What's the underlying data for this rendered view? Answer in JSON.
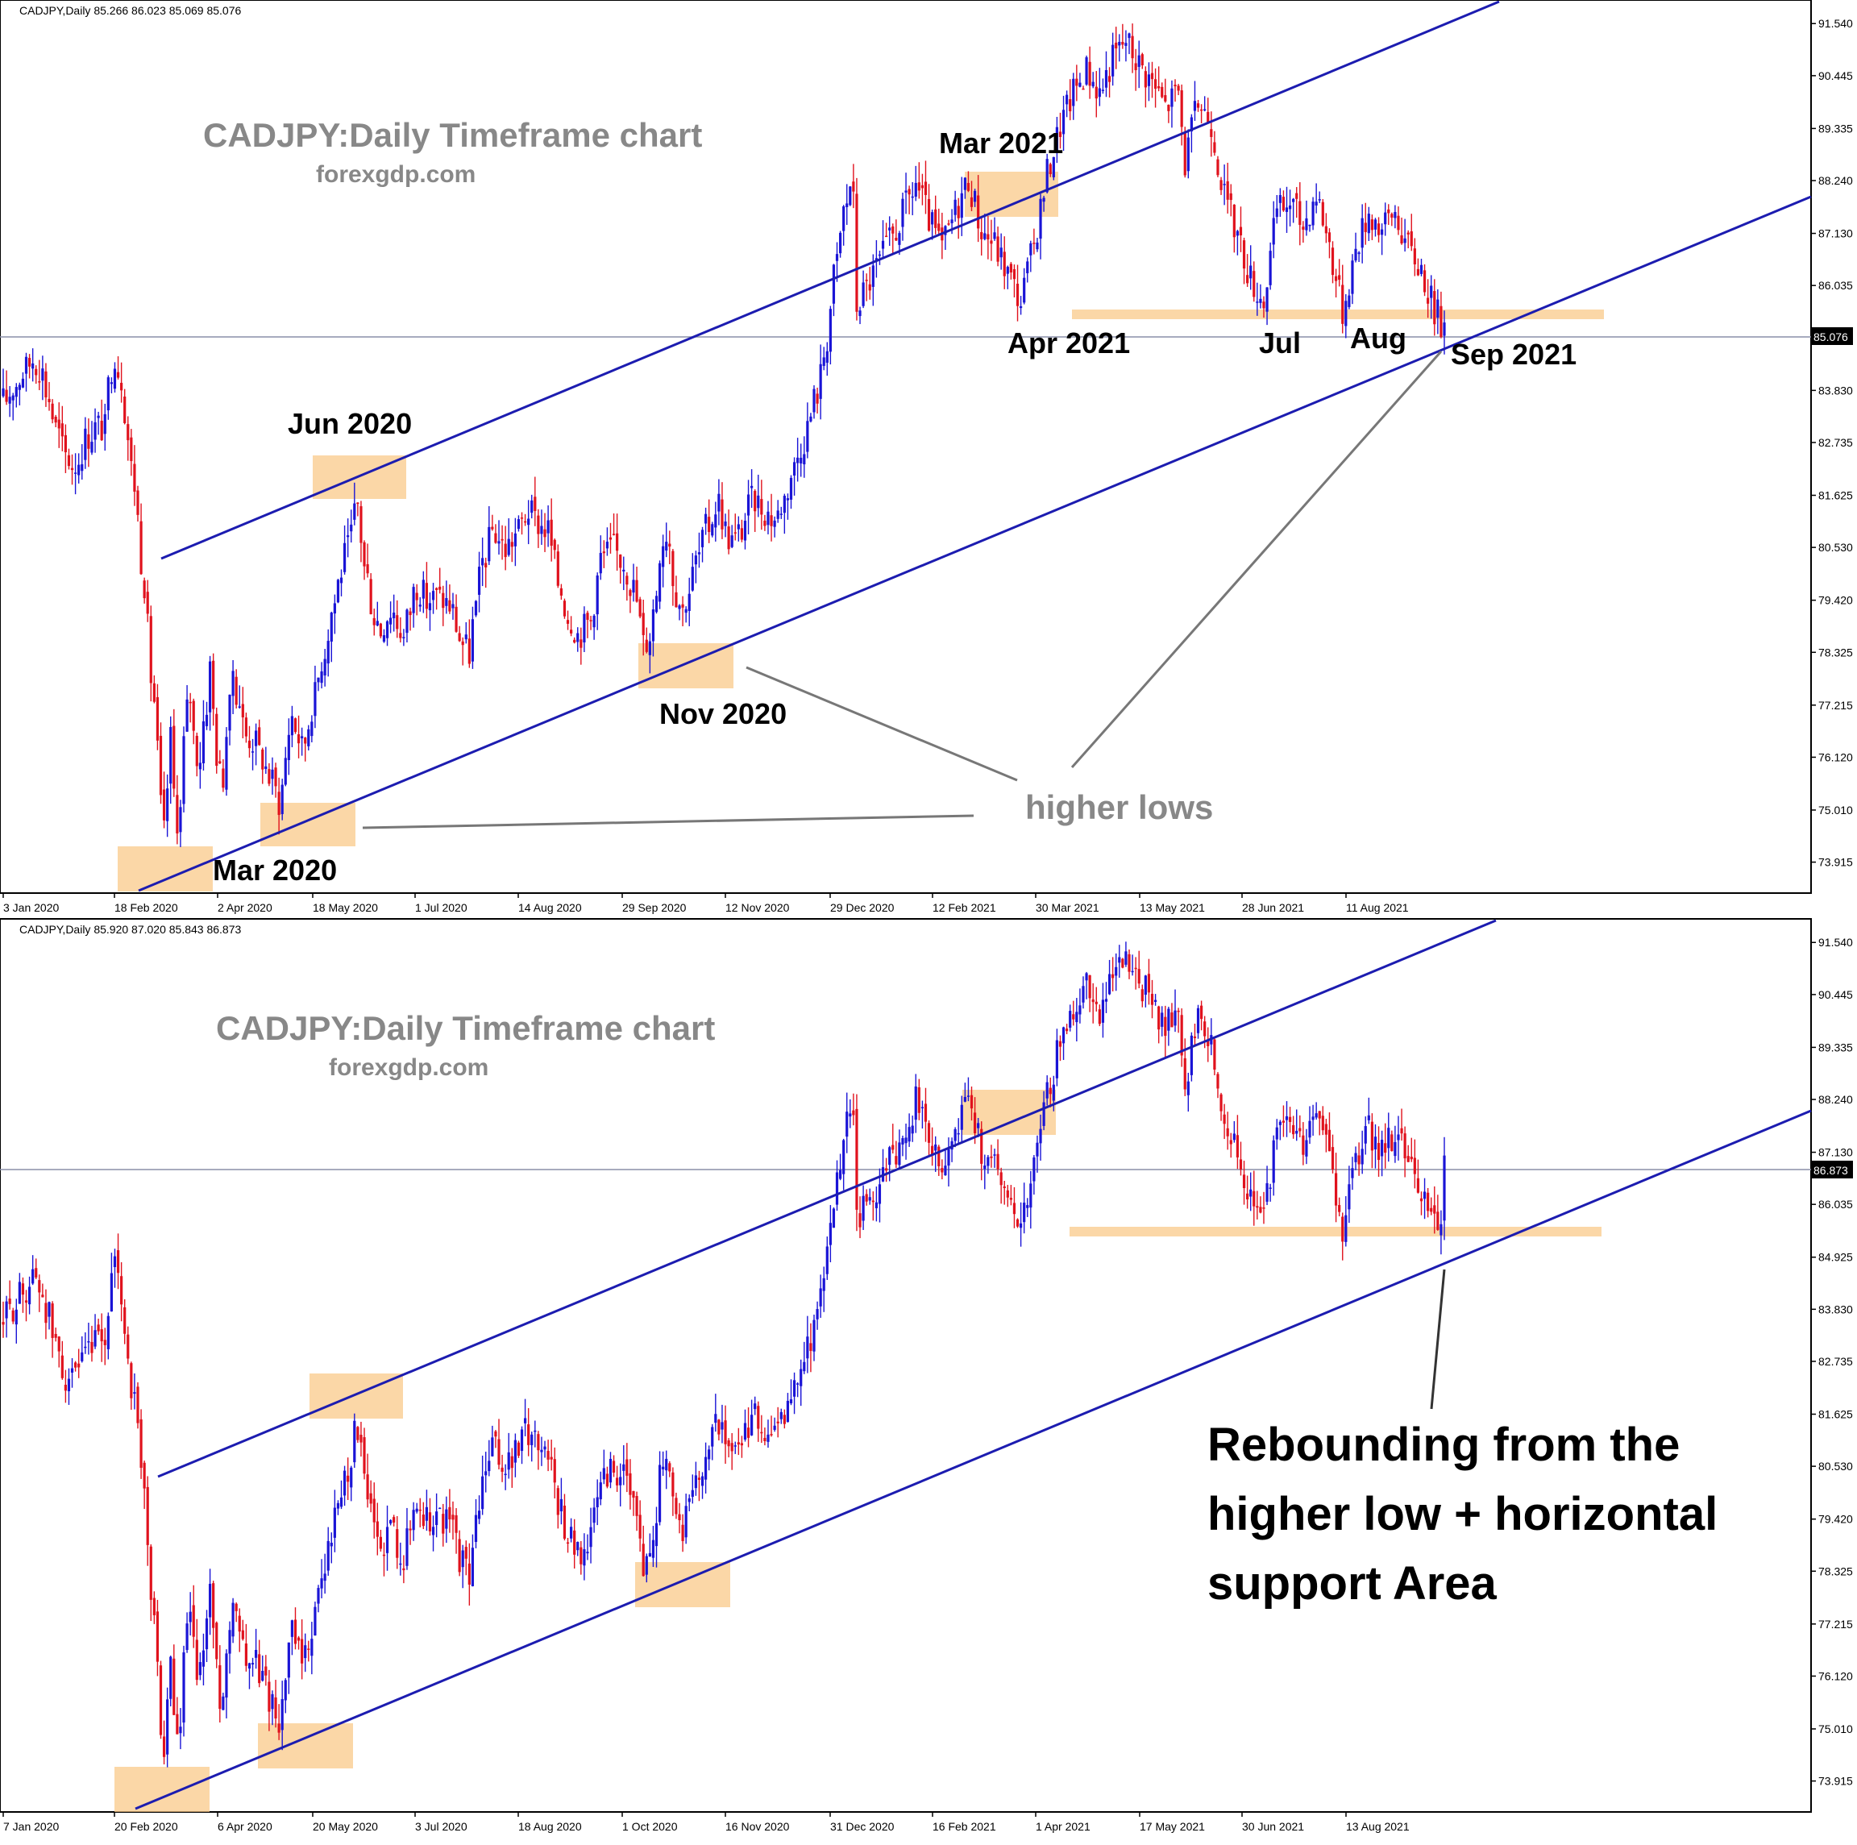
{
  "chart_data": [
    {
      "type": "candlestick",
      "header": "CADJPY,Daily  85.266 86.023 85.069 85.076",
      "title": "CADJPY:Daily Timeframe chart",
      "subtitle": "forexgdp.com",
      "current_price": "85.076",
      "y_ticks": [
        "91.540",
        "90.445",
        "89.335",
        "88.240",
        "87.130",
        "86.035",
        "84.925",
        "83.830",
        "82.735",
        "81.625",
        "80.530",
        "79.420",
        "78.325",
        "77.215",
        "76.120",
        "75.010",
        "73.915"
      ],
      "x_ticks": [
        "3 Jan 2020",
        "18 Feb 2020",
        "2 Apr 2020",
        "18 May 2020",
        "1 Jul 2020",
        "14 Aug 2020",
        "29 Sep 2020",
        "12 Nov 2020",
        "29 Dec 2020",
        "12 Feb 2021",
        "30 Mar 2021",
        "13 May 2021",
        "28 Jun 2021",
        "11 Aug 2021"
      ],
      "ylim": [
        73.4,
        91.9
      ],
      "annotations": [
        "Jun 2020",
        "Mar 2021",
        "Apr 2021",
        "Jul",
        "Aug",
        "Sep 2021",
        "Nov 2020",
        "Mar 2020",
        "higher lows"
      ],
      "candles_shown": 440,
      "colors": {
        "bullish": "#1a14d6",
        "bearish": "#e0121d",
        "trendline": "#1c1cb0",
        "zone": "#f9c98a"
      }
    },
    {
      "type": "candlestick",
      "header": "CADJPY,Daily  85.920 87.020 85.843 86.873",
      "title": "CADJPY:Daily Timeframe chart",
      "subtitle": "forexgdp.com",
      "current_price": "86.873",
      "y_ticks": [
        "91.540",
        "90.445",
        "89.335",
        "88.240",
        "87.130",
        "86.035",
        "84.925",
        "83.830",
        "82.735",
        "81.625",
        "80.530",
        "79.420",
        "78.325",
        "77.215",
        "76.120",
        "75.010",
        "73.915"
      ],
      "x_ticks": [
        "7 Jan 2020",
        "20 Feb 2020",
        "6 Apr 2020",
        "20 May 2020",
        "3 Jul 2020",
        "18 Aug 2020",
        "1 Oct 2020",
        "16 Nov 2020",
        "31 Dec 2020",
        "16 Feb 2021",
        "1 Apr 2021",
        "17 May 2021",
        "30 Jun 2021",
        "13 Aug 2021"
      ],
      "ylim": [
        73.4,
        91.9
      ],
      "annotations": [
        "Rebounding from the",
        "higher low + horizontal",
        "support Area"
      ],
      "candles_shown": 440,
      "colors": {
        "bullish": "#1a14d6",
        "bearish": "#e0121d",
        "trendline": "#1c1cb0",
        "zone": "#f9c98a"
      }
    }
  ]
}
